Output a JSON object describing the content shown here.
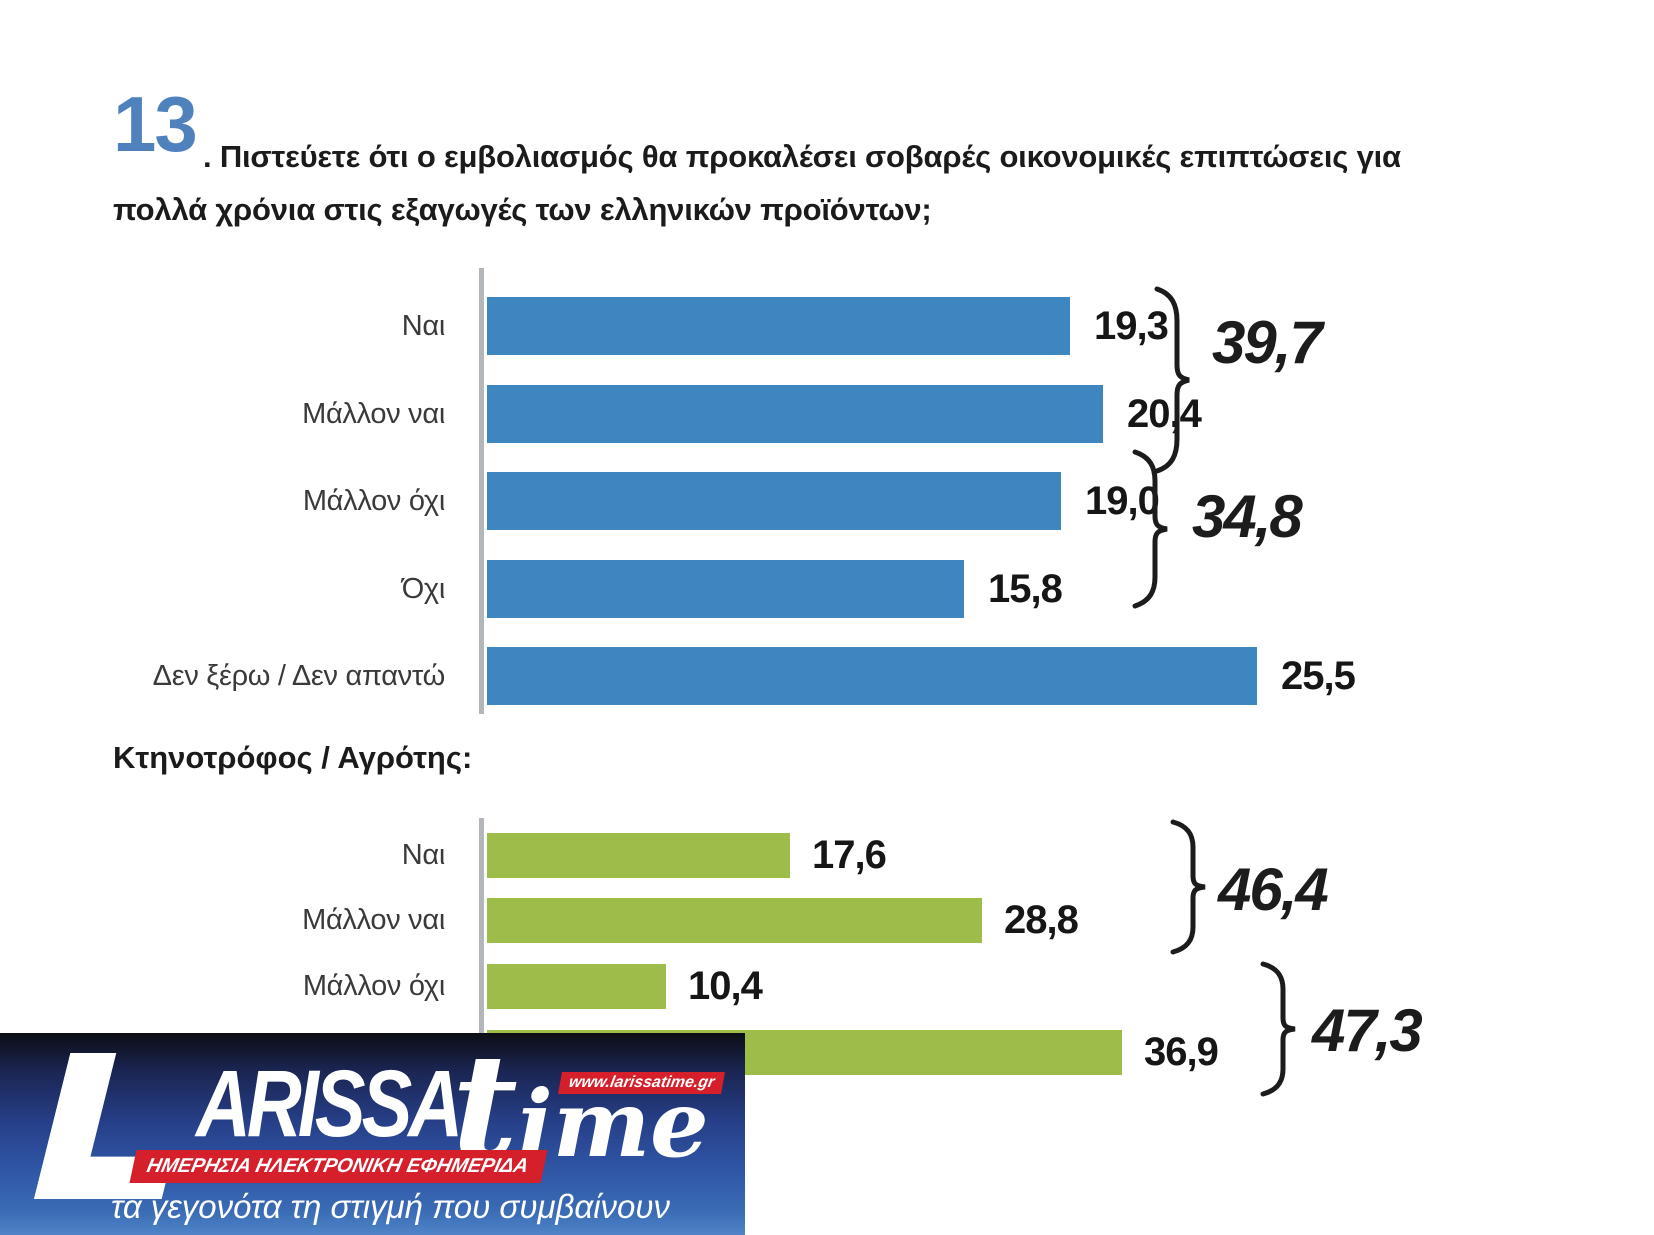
{
  "title": {
    "number": "13",
    "rest": ". Πιστεύετε ότι ο εμβολιασμός θα προκαλέσει σοβαρές οικονομικές επιπτώσεις για πολλά χρόνια στις εξαγωγές των ελληνικών προϊόντων;"
  },
  "section_label": "Κτηνοτρόφος / Αγρότης:",
  "colors": {
    "bar_blue": "#3d86bf",
    "bar_green": "#9ebc4a",
    "title_number_blue": "#4f81bd",
    "axis_gray": "#b3b6ba",
    "banner_red": "#d51f2b"
  },
  "chart_data": [
    {
      "type": "bar",
      "orientation": "horizontal",
      "categories": [
        "Ναι",
        "Μάλλον ναι",
        "Μάλλον όχι",
        "Όχι",
        "Δεν ξέρω / Δεν απαντώ"
      ],
      "values": [
        19.3,
        20.4,
        19.0,
        15.8,
        25.5
      ],
      "value_labels": [
        "19,3",
        "20,4",
        "19,0",
        "15,8",
        "25,5"
      ],
      "bar_color": "#3d86bf",
      "grid": false,
      "groups": [
        {
          "label": "39,7",
          "value": 39.7,
          "categories": [
            0,
            1
          ]
        },
        {
          "label": "34,8",
          "value": 34.8,
          "categories": [
            2,
            3
          ]
        }
      ]
    },
    {
      "type": "bar",
      "orientation": "horizontal",
      "subtitle": "Κτηνοτρόφος / Αγρότης:",
      "categories": [
        "Ναι",
        "Μάλλον ναι",
        "Μάλλον όχι",
        ""
      ],
      "values": [
        17.6,
        28.8,
        10.4,
        36.9
      ],
      "value_labels": [
        "17,6",
        "28,8",
        "10,4",
        "36,9"
      ],
      "bar_color": "#9ebc4a",
      "grid": false,
      "groups": [
        {
          "label": "46,4",
          "value": 46.4,
          "categories": [
            0,
            1
          ]
        },
        {
          "label": "47,3",
          "value": 47.3,
          "categories": [
            2,
            3
          ]
        }
      ]
    }
  ],
  "banner": {
    "logo_main": "LARISSA",
    "logo_arissa": "ARISSA",
    "logo_time": "time",
    "url": "www.larissatime.gr",
    "ribbon": "ΗΜΕΡΗΣΙΑ ΗΛΕΚΤΡΟΝΙΚΗ ΕΦΗΜΕΡΙΔΑ",
    "tagline": "τα γεγονότα τη στιγμή που συμβαίνουν"
  }
}
